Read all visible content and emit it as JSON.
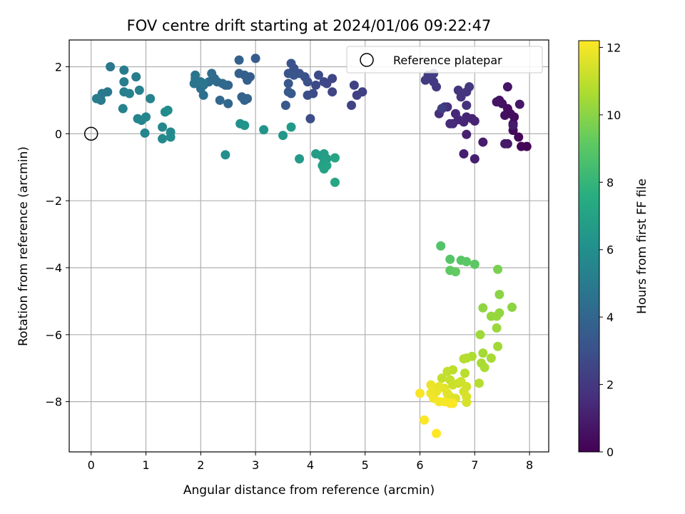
{
  "chart_data": {
    "type": "scatter",
    "title": "FOV centre drift starting at 2024/01/06 09:22:47",
    "xlabel": "Angular distance from reference (arcmin)",
    "ylabel": "Rotation from reference (arcmin)",
    "xlim": [
      -0.4,
      8.35
    ],
    "ylim": [
      -9.5,
      2.8
    ],
    "xticks": [
      0,
      1,
      2,
      3,
      4,
      5,
      6,
      7,
      8
    ],
    "yticks": [
      -8,
      -6,
      -4,
      -2,
      0,
      2
    ],
    "grid": true,
    "legend": {
      "label": "Reference platepar",
      "placement": "top-right"
    },
    "reference_point": {
      "x": 0,
      "y": 0
    },
    "colorbar": {
      "label": "Hours from first FF file",
      "range": [
        0,
        12.2
      ],
      "ticks": [
        0,
        2,
        4,
        6,
        8,
        10,
        12
      ],
      "colormap": "viridis"
    },
    "points": [
      {
        "x": 7.95,
        "y": -0.38,
        "h": 0.1
      },
      {
        "x": 7.85,
        "y": -0.38,
        "h": 0.15
      },
      {
        "x": 7.8,
        "y": -0.1,
        "h": 0.2
      },
      {
        "x": 7.7,
        "y": 0.1,
        "h": 0.25
      },
      {
        "x": 7.7,
        "y": 0.3,
        "h": 0.3
      },
      {
        "x": 7.72,
        "y": 0.5,
        "h": 0.35
      },
      {
        "x": 7.65,
        "y": 0.6,
        "h": 0.4
      },
      {
        "x": 7.6,
        "y": 0.75,
        "h": 0.45
      },
      {
        "x": 7.55,
        "y": 0.55,
        "h": 0.5
      },
      {
        "x": 7.5,
        "y": 0.9,
        "h": 0.55
      },
      {
        "x": 7.45,
        "y": 1.0,
        "h": 0.6
      },
      {
        "x": 7.4,
        "y": 0.95,
        "h": 0.65
      },
      {
        "x": 7.6,
        "y": 1.4,
        "h": 0.7
      },
      {
        "x": 7.82,
        "y": 0.88,
        "h": 0.75
      },
      {
        "x": 7.6,
        "y": -0.3,
        "h": 0.8
      },
      {
        "x": 7.55,
        "y": -0.3,
        "h": 0.85
      },
      {
        "x": 7.7,
        "y": 0.25,
        "h": 0.9
      },
      {
        "x": 7.15,
        "y": -0.25,
        "h": 0.95
      },
      {
        "x": 7.0,
        "y": -0.75,
        "h": 1.0
      },
      {
        "x": 6.8,
        "y": -0.6,
        "h": 1.05
      },
      {
        "x": 6.85,
        "y": -0.02,
        "h": 1.1
      },
      {
        "x": 6.95,
        "y": 0.45,
        "h": 1.15
      },
      {
        "x": 7.0,
        "y": 0.38,
        "h": 1.2
      },
      {
        "x": 6.85,
        "y": 0.5,
        "h": 1.25
      },
      {
        "x": 6.8,
        "y": 0.35,
        "h": 1.3
      },
      {
        "x": 6.7,
        "y": 0.42,
        "h": 1.35
      },
      {
        "x": 6.65,
        "y": 0.6,
        "h": 1.4
      },
      {
        "x": 6.6,
        "y": 0.3,
        "h": 1.45
      },
      {
        "x": 6.55,
        "y": 0.3,
        "h": 1.5
      },
      {
        "x": 6.5,
        "y": 0.8,
        "h": 1.55
      },
      {
        "x": 6.4,
        "y": 0.75,
        "h": 1.6
      },
      {
        "x": 6.35,
        "y": 0.6,
        "h": 1.65
      },
      {
        "x": 6.45,
        "y": 0.8,
        "h": 1.7
      },
      {
        "x": 6.85,
        "y": 0.85,
        "h": 1.75
      },
      {
        "x": 6.75,
        "y": 1.1,
        "h": 1.8
      },
      {
        "x": 6.7,
        "y": 1.3,
        "h": 1.85
      },
      {
        "x": 6.85,
        "y": 1.25,
        "h": 1.9
      },
      {
        "x": 6.9,
        "y": 1.4,
        "h": 1.95
      },
      {
        "x": 6.3,
        "y": 1.4,
        "h": 2.0
      },
      {
        "x": 6.25,
        "y": 1.55,
        "h": 2.05
      },
      {
        "x": 6.1,
        "y": 1.6,
        "h": 2.1
      },
      {
        "x": 6.15,
        "y": 1.75,
        "h": 2.15
      },
      {
        "x": 6.25,
        "y": 1.8,
        "h": 2.2
      },
      {
        "x": 6.4,
        "y": 0.75,
        "h": 2.25
      },
      {
        "x": 4.95,
        "y": 1.25,
        "h": 2.3
      },
      {
        "x": 4.85,
        "y": 1.15,
        "h": 2.35
      },
      {
        "x": 4.8,
        "y": 1.45,
        "h": 2.4
      },
      {
        "x": 4.75,
        "y": 0.85,
        "h": 2.45
      },
      {
        "x": 4.4,
        "y": 1.25,
        "h": 2.5
      },
      {
        "x": 4.4,
        "y": 1.65,
        "h": 2.55
      },
      {
        "x": 4.3,
        "y": 1.5,
        "h": 2.6
      },
      {
        "x": 4.25,
        "y": 1.55,
        "h": 2.65
      },
      {
        "x": 4.1,
        "y": 1.45,
        "h": 2.7
      },
      {
        "x": 4.15,
        "y": 1.75,
        "h": 2.75
      },
      {
        "x": 4.05,
        "y": 1.2,
        "h": 2.8
      },
      {
        "x": 4.0,
        "y": 0.45,
        "h": 2.85
      },
      {
        "x": 3.95,
        "y": 1.15,
        "h": 2.9
      },
      {
        "x": 3.95,
        "y": 1.55,
        "h": 2.95
      },
      {
        "x": 3.9,
        "y": 1.7,
        "h": 3.0
      },
      {
        "x": 3.8,
        "y": 1.8,
        "h": 3.05
      },
      {
        "x": 3.7,
        "y": 1.95,
        "h": 3.1
      },
      {
        "x": 3.65,
        "y": 2.1,
        "h": 3.15
      },
      {
        "x": 3.6,
        "y": 1.8,
        "h": 3.2
      },
      {
        "x": 3.7,
        "y": 1.75,
        "h": 3.25
      },
      {
        "x": 3.6,
        "y": 1.5,
        "h": 3.3
      },
      {
        "x": 3.65,
        "y": 1.2,
        "h": 3.35
      },
      {
        "x": 3.55,
        "y": 0.85,
        "h": 3.4
      },
      {
        "x": 3.6,
        "y": 1.25,
        "h": 3.45
      },
      {
        "x": 3.0,
        "y": 2.25,
        "h": 3.5
      },
      {
        "x": 2.9,
        "y": 1.7,
        "h": 3.55
      },
      {
        "x": 2.85,
        "y": 1.6,
        "h": 3.6
      },
      {
        "x": 2.8,
        "y": 1.75,
        "h": 3.65
      },
      {
        "x": 2.7,
        "y": 1.8,
        "h": 3.7
      },
      {
        "x": 2.7,
        "y": 2.2,
        "h": 3.75
      },
      {
        "x": 2.75,
        "y": 1.1,
        "h": 3.8
      },
      {
        "x": 2.8,
        "y": 1.0,
        "h": 3.85
      },
      {
        "x": 2.85,
        "y": 1.05,
        "h": 3.9
      },
      {
        "x": 2.5,
        "y": 1.45,
        "h": 3.95
      },
      {
        "x": 2.45,
        "y": 1.45,
        "h": 4.0
      },
      {
        "x": 2.5,
        "y": 0.9,
        "h": 4.05
      },
      {
        "x": 2.35,
        "y": 1.0,
        "h": 4.1
      },
      {
        "x": 2.4,
        "y": 1.5,
        "h": 4.15
      },
      {
        "x": 2.3,
        "y": 1.55,
        "h": 4.2
      },
      {
        "x": 2.25,
        "y": 1.65,
        "h": 4.25
      },
      {
        "x": 2.2,
        "y": 1.8,
        "h": 4.3
      },
      {
        "x": 2.15,
        "y": 1.55,
        "h": 4.35
      },
      {
        "x": 2.05,
        "y": 1.45,
        "h": 4.4
      },
      {
        "x": 2.05,
        "y": 1.15,
        "h": 4.45
      },
      {
        "x": 2.0,
        "y": 1.35,
        "h": 4.5
      },
      {
        "x": 2.0,
        "y": 1.55,
        "h": 4.55
      },
      {
        "x": 1.9,
        "y": 1.75,
        "h": 4.6
      },
      {
        "x": 1.88,
        "y": 1.5,
        "h": 4.65
      },
      {
        "x": 1.9,
        "y": 1.65,
        "h": 4.7
      },
      {
        "x": 2.05,
        "y": 1.5,
        "h": 4.75
      },
      {
        "x": 0.35,
        "y": 2.0,
        "h": 4.8
      },
      {
        "x": 0.3,
        "y": 1.25,
        "h": 4.85
      },
      {
        "x": 0.2,
        "y": 1.2,
        "h": 4.9
      },
      {
        "x": 0.18,
        "y": 1.0,
        "h": 4.95
      },
      {
        "x": 0.1,
        "y": 1.05,
        "h": 5.0
      },
      {
        "x": 0.6,
        "y": 1.9,
        "h": 5.05
      },
      {
        "x": 0.82,
        "y": 1.7,
        "h": 5.1
      },
      {
        "x": 0.6,
        "y": 1.55,
        "h": 5.15
      },
      {
        "x": 0.6,
        "y": 1.25,
        "h": 5.2
      },
      {
        "x": 0.7,
        "y": 1.2,
        "h": 5.25
      },
      {
        "x": 0.88,
        "y": 1.3,
        "h": 5.3
      },
      {
        "x": 1.08,
        "y": 1.05,
        "h": 5.35
      },
      {
        "x": 0.58,
        "y": 0.75,
        "h": 5.4
      },
      {
        "x": 0.85,
        "y": 0.45,
        "h": 5.45
      },
      {
        "x": 0.92,
        "y": 0.4,
        "h": 5.5
      },
      {
        "x": 1.0,
        "y": 0.5,
        "h": 5.55
      },
      {
        "x": 0.98,
        "y": 0.02,
        "h": 5.6
      },
      {
        "x": 1.3,
        "y": 0.2,
        "h": 5.65
      },
      {
        "x": 1.3,
        "y": -0.15,
        "h": 5.7
      },
      {
        "x": 1.45,
        "y": 0.05,
        "h": 5.75
      },
      {
        "x": 1.45,
        "y": -0.1,
        "h": 5.8
      },
      {
        "x": 1.35,
        "y": 0.65,
        "h": 5.85
      },
      {
        "x": 1.4,
        "y": 0.7,
        "h": 5.9
      },
      {
        "x": 2.45,
        "y": -0.63,
        "h": 6.0
      },
      {
        "x": 2.72,
        "y": 0.3,
        "h": 6.1
      },
      {
        "x": 2.8,
        "y": 0.25,
        "h": 6.2
      },
      {
        "x": 3.15,
        "y": 0.12,
        "h": 6.3
      },
      {
        "x": 3.5,
        "y": -0.05,
        "h": 6.4
      },
      {
        "x": 3.65,
        "y": 0.2,
        "h": 6.5
      },
      {
        "x": 3.8,
        "y": -0.75,
        "h": 6.6
      },
      {
        "x": 4.1,
        "y": -0.6,
        "h": 6.7
      },
      {
        "x": 4.2,
        "y": -0.65,
        "h": 6.75
      },
      {
        "x": 4.25,
        "y": -0.6,
        "h": 6.8
      },
      {
        "x": 4.3,
        "y": -0.75,
        "h": 6.85
      },
      {
        "x": 4.25,
        "y": -0.85,
        "h": 6.9
      },
      {
        "x": 4.22,
        "y": -0.95,
        "h": 6.95
      },
      {
        "x": 4.25,
        "y": -1.05,
        "h": 7.0
      },
      {
        "x": 4.3,
        "y": -0.95,
        "h": 7.05
      },
      {
        "x": 4.45,
        "y": -0.72,
        "h": 7.1
      },
      {
        "x": 4.45,
        "y": -1.45,
        "h": 7.2
      },
      {
        "x": 6.38,
        "y": -3.35,
        "h": 8.8
      },
      {
        "x": 6.55,
        "y": -3.75,
        "h": 8.9
      },
      {
        "x": 6.75,
        "y": -3.78,
        "h": 9.0
      },
      {
        "x": 6.85,
        "y": -3.82,
        "h": 9.05
      },
      {
        "x": 7.0,
        "y": -3.9,
        "h": 9.1
      },
      {
        "x": 6.55,
        "y": -4.08,
        "h": 9.15
      },
      {
        "x": 6.65,
        "y": -4.12,
        "h": 9.2
      },
      {
        "x": 7.42,
        "y": -4.05,
        "h": 9.7
      },
      {
        "x": 7.45,
        "y": -4.8,
        "h": 10.0
      },
      {
        "x": 7.68,
        "y": -5.18,
        "h": 10.05
      },
      {
        "x": 7.15,
        "y": -5.2,
        "h": 10.1
      },
      {
        "x": 7.45,
        "y": -5.35,
        "h": 10.15
      },
      {
        "x": 7.3,
        "y": -5.45,
        "h": 10.2
      },
      {
        "x": 7.4,
        "y": -5.45,
        "h": 10.25
      },
      {
        "x": 7.4,
        "y": -5.8,
        "h": 10.3
      },
      {
        "x": 7.1,
        "y": -6.0,
        "h": 10.4
      },
      {
        "x": 7.42,
        "y": -6.35,
        "h": 10.45
      },
      {
        "x": 7.15,
        "y": -6.55,
        "h": 10.5
      },
      {
        "x": 7.3,
        "y": -6.7,
        "h": 10.55
      },
      {
        "x": 7.12,
        "y": -6.85,
        "h": 10.6
      },
      {
        "x": 7.18,
        "y": -6.98,
        "h": 10.65
      },
      {
        "x": 6.95,
        "y": -6.65,
        "h": 10.7
      },
      {
        "x": 6.85,
        "y": -6.7,
        "h": 10.75
      },
      {
        "x": 6.8,
        "y": -6.72,
        "h": 10.8
      },
      {
        "x": 7.08,
        "y": -7.45,
        "h": 10.85
      },
      {
        "x": 6.82,
        "y": -7.15,
        "h": 10.9
      },
      {
        "x": 6.6,
        "y": -7.05,
        "h": 11.0
      },
      {
        "x": 6.5,
        "y": -7.1,
        "h": 11.05
      },
      {
        "x": 6.4,
        "y": -7.3,
        "h": 11.1
      },
      {
        "x": 6.55,
        "y": -7.35,
        "h": 11.15
      },
      {
        "x": 6.6,
        "y": -7.5,
        "h": 11.2
      },
      {
        "x": 6.7,
        "y": -7.45,
        "h": 11.25
      },
      {
        "x": 6.75,
        "y": -7.4,
        "h": 11.3
      },
      {
        "x": 6.85,
        "y": -7.55,
        "h": 11.35
      },
      {
        "x": 6.8,
        "y": -7.7,
        "h": 11.4
      },
      {
        "x": 6.85,
        "y": -7.85,
        "h": 11.45
      },
      {
        "x": 6.85,
        "y": -8.02,
        "h": 11.5
      },
      {
        "x": 6.65,
        "y": -7.9,
        "h": 11.55
      },
      {
        "x": 6.55,
        "y": -7.85,
        "h": 11.6
      },
      {
        "x": 6.5,
        "y": -7.75,
        "h": 11.65
      },
      {
        "x": 6.45,
        "y": -7.6,
        "h": 11.7
      },
      {
        "x": 6.35,
        "y": -7.55,
        "h": 11.75
      },
      {
        "x": 6.3,
        "y": -7.7,
        "h": 11.8
      },
      {
        "x": 6.2,
        "y": -7.5,
        "h": 11.85
      },
      {
        "x": 6.2,
        "y": -7.75,
        "h": 11.9
      },
      {
        "x": 6.25,
        "y": -7.9,
        "h": 11.95
      },
      {
        "x": 6.35,
        "y": -8.0,
        "h": 12.0
      },
      {
        "x": 6.45,
        "y": -8.0,
        "h": 12.05
      },
      {
        "x": 6.55,
        "y": -8.05,
        "h": 12.1
      },
      {
        "x": 6.6,
        "y": -8.05,
        "h": 12.15
      },
      {
        "x": 6.0,
        "y": -7.75,
        "h": 12.1
      },
      {
        "x": 6.08,
        "y": -8.55,
        "h": 12.15
      },
      {
        "x": 6.3,
        "y": -8.95,
        "h": 12.2
      }
    ]
  }
}
